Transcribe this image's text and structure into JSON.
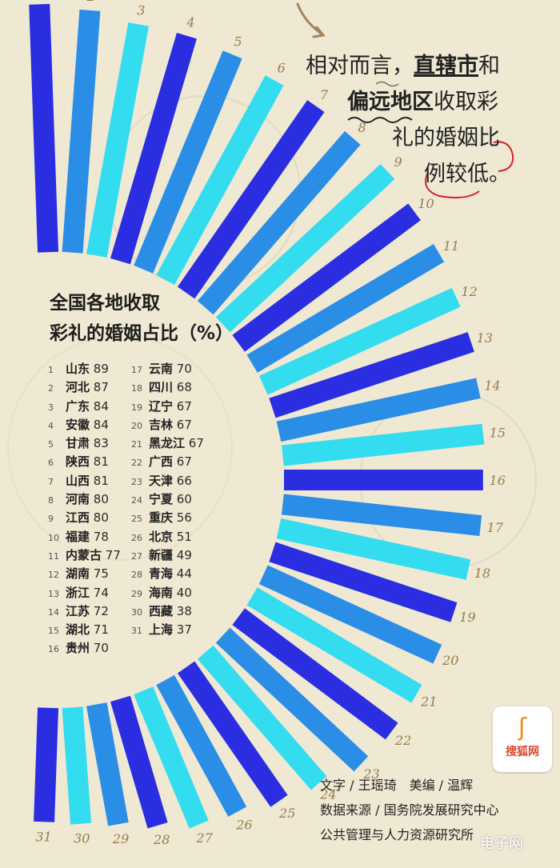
{
  "title": {
    "line1": "全国各地收取",
    "line2": "彩礼的婚姻占比（%）"
  },
  "note": {
    "line1_a": "相对而言，",
    "line1_b": "直辖市",
    "line1_c": "和",
    "line2_a": "偏远地区",
    "line2_b": "收取彩",
    "line3": "礼的婚姻比",
    "line4": "例较低。"
  },
  "credits": {
    "line1": "文字 / 王瑶琦　美编 / 温辉",
    "line2": "数据来源 / 国务院发展研究中心",
    "line3": "公共管理与人力资源研究所"
  },
  "logo": {
    "icon": "sohu-s-icon",
    "text": "搜狐网"
  },
  "watermark": "电子网",
  "colors": {
    "dark": "#2a2ee0",
    "mid": "#2a8ee6",
    "light": "#34dcf0",
    "rank": "#9a7b4a"
  },
  "chart_data": {
    "type": "bar",
    "title": "全国各地收取彩礼的婚姻占比（%）",
    "categories": [
      "山东",
      "河北",
      "广东",
      "安徽",
      "甘肃",
      "陕西",
      "山西",
      "河南",
      "江西",
      "福建",
      "内蒙古",
      "湖南",
      "浙江",
      "江苏",
      "湖北",
      "贵州",
      "云南",
      "四川",
      "辽宁",
      "吉林",
      "黑龙江",
      "广西",
      "天津",
      "宁夏",
      "重庆",
      "北京",
      "新疆",
      "青海",
      "海南",
      "西藏",
      "上海"
    ],
    "ranks": [
      "1",
      "2",
      "3",
      "4",
      "5",
      "6",
      "7",
      "8",
      "9",
      "10",
      "11",
      "12",
      "13",
      "14",
      "15",
      "16",
      "17",
      "18",
      "19",
      "20",
      "21",
      "22",
      "23",
      "24",
      "25",
      "26",
      "27",
      "28",
      "29",
      "30",
      "31"
    ],
    "values": [
      89,
      87,
      84,
      84,
      83,
      81,
      81,
      80,
      80,
      78,
      77,
      75,
      74,
      72,
      71,
      70,
      70,
      68,
      67,
      67,
      67,
      67,
      66,
      60,
      56,
      51,
      49,
      44,
      40,
      38,
      37
    ],
    "color_cycle": [
      "dark",
      "mid",
      "light"
    ]
  }
}
